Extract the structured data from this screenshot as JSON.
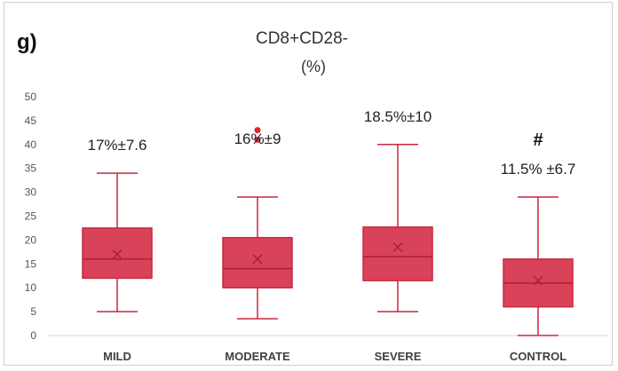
{
  "panel_label": "g)",
  "colors": {
    "box_fill": "#d9435a",
    "box_stroke": "#c8283e",
    "outlier": "#e0252e",
    "tick_text": "#555555",
    "label_text": "#222222"
  },
  "chart_data": {
    "type": "box",
    "title": "CD8+CD28-",
    "subtitle": "(%)",
    "xlabel": "",
    "ylabel": "",
    "ylim": [
      0,
      50
    ],
    "ytick_step": 5,
    "grid": false,
    "categories": [
      "MILD",
      "MODERATE",
      "SEVERE",
      "CONTROL"
    ],
    "boxes": [
      {
        "category": "MILD",
        "min": 5,
        "q1": 12,
        "median": 16,
        "mean": 17,
        "q3": 22.5,
        "max": 34,
        "outliers": [],
        "annotation": "17%±7.6"
      },
      {
        "category": "MODERATE",
        "min": 3.5,
        "q1": 10,
        "median": 14,
        "mean": 16,
        "q3": 20.5,
        "max": 29,
        "outliers": [
          41,
          43
        ],
        "annotation": "16%±9"
      },
      {
        "category": "SEVERE",
        "min": 5,
        "q1": 11.5,
        "median": 16.5,
        "mean": 18.5,
        "q3": 22.7,
        "max": 40,
        "outliers": [],
        "annotation": "18.5%±10"
      },
      {
        "category": "CONTROL",
        "min": 0,
        "q1": 6,
        "median": 11,
        "mean": 11.5,
        "q3": 16,
        "max": 29,
        "outliers": [],
        "annotation": "11.5% ±6.7",
        "marker": "#"
      }
    ]
  }
}
